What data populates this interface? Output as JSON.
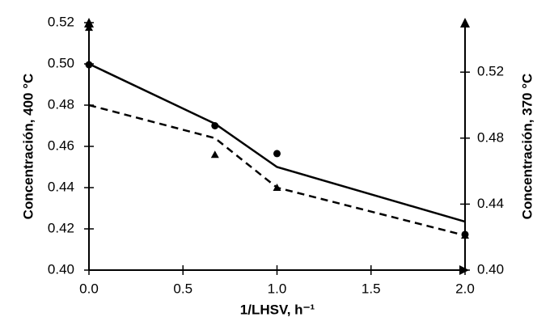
{
  "chart_data": {
    "type": "line",
    "xlabel": "1/LHSV, h⁻¹",
    "ylabel": "Concentración, 400 °C",
    "y2label": "Concentración, 370 °C",
    "x": [
      0,
      0.67,
      1.0,
      2.0
    ],
    "xlim": [
      0,
      2.0
    ],
    "xticks": [
      {
        "value": 0,
        "label": "0.0"
      },
      0.5,
      {
        "value": 1,
        "label": "1.0"
      },
      1.5,
      {
        "value": 2,
        "label": "2.0"
      }
    ],
    "ylim": [
      0.4,
      0.52
    ],
    "yticks": [
      {
        "value": 0.4,
        "label": "0.40"
      },
      0.42,
      0.44,
      0.46,
      0.48,
      {
        "value": 0.5,
        "label": "0.50"
      },
      0.52
    ],
    "y2lim": [
      0.4,
      0.55
    ],
    "y2ticks": [
      {
        "value": 0.4,
        "label": "0.40"
      },
      0.44,
      0.48,
      0.52
    ],
    "series": [
      {
        "color": "#000000",
        "mode": "line",
        "dash": false,
        "axis": "y",
        "values": [
          0.5,
          0.471,
          0.45,
          0.4235
        ]
      },
      {
        "color": "#000000",
        "mode": "line",
        "dash": true,
        "axis": "y2",
        "values": [
          0.5,
          0.48,
          0.45,
          0.421
        ]
      },
      {
        "color": "#000000",
        "mode": "markers",
        "marker": "circle",
        "axis": "y",
        "values": [
          0.4996,
          0.47,
          0.4565,
          0.4173
        ]
      },
      {
        "color": "#000000",
        "mode": "markers",
        "marker": "triangle",
        "axis": "y2",
        "values": [
          0.547,
          0.47,
          0.45,
          0.421
        ]
      }
    ]
  }
}
